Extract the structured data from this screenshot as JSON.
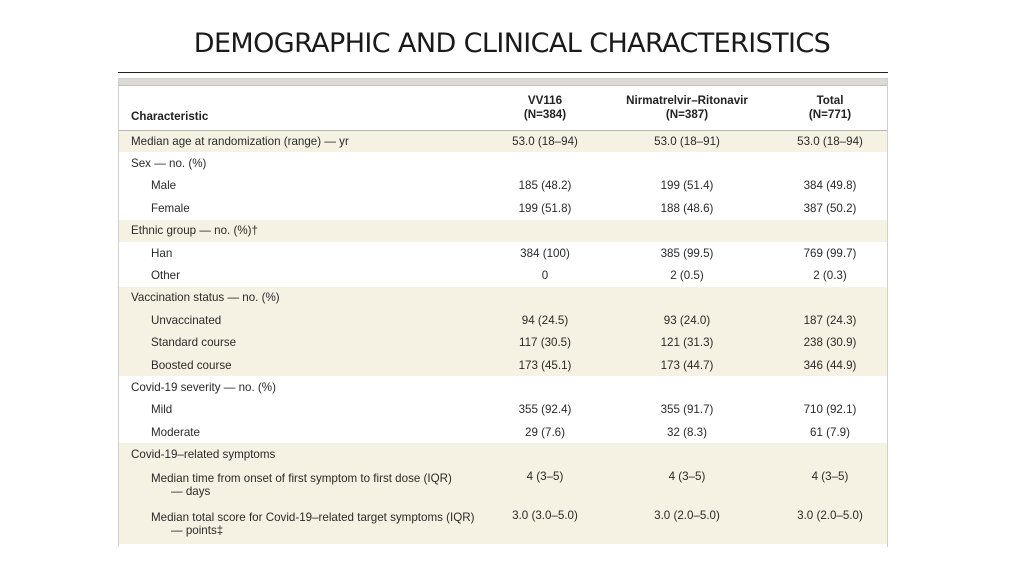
{
  "slide": {
    "title": "DEMOGRAPHIC AND CLINICAL CHARACTERISTICS"
  },
  "table": {
    "headers": {
      "characteristic": "Characteristic",
      "col1_name": "VV116",
      "col1_n": "(N=384)",
      "col2_name": "Nirmatrelvir–Ritonavir",
      "col2_n": "(N=387)",
      "col3_name": "Total",
      "col3_n": "(N=771)"
    },
    "rows": [
      {
        "label": "Median age at randomization (range) — yr",
        "vv116": "53.0 (18–94)",
        "nr": "53.0 (18–91)",
        "total": "53.0 (18–94)"
      },
      {
        "label": "Sex — no. (%)",
        "vv116": "",
        "nr": "",
        "total": ""
      },
      {
        "label": "Male",
        "vv116": "185 (48.2)",
        "nr": "199 (51.4)",
        "total": "384 (49.8)"
      },
      {
        "label": "Female",
        "vv116": "199 (51.8)",
        "nr": "188 (48.6)",
        "total": "387 (50.2)"
      },
      {
        "label": "Ethnic group — no. (%)†",
        "vv116": "",
        "nr": "",
        "total": ""
      },
      {
        "label": "Han",
        "vv116": "384 (100)",
        "nr": "385 (99.5)",
        "total": "769 (99.7)"
      },
      {
        "label": "Other",
        "vv116": "0",
        "nr": "2 (0.5)",
        "total": "2 (0.3)"
      },
      {
        "label": "Vaccination status — no. (%)",
        "vv116": "",
        "nr": "",
        "total": ""
      },
      {
        "label": "Unvaccinated",
        "vv116": "94 (24.5)",
        "nr": "93 (24.0)",
        "total": "187 (24.3)"
      },
      {
        "label": "Standard course",
        "vv116": "117 (30.5)",
        "nr": "121 (31.3)",
        "total": "238 (30.9)"
      },
      {
        "label": "Boosted course",
        "vv116": "173 (45.1)",
        "nr": "173 (44.7)",
        "total": "346 (44.9)"
      },
      {
        "label": "Covid-19 severity — no. (%)",
        "vv116": "",
        "nr": "",
        "total": ""
      },
      {
        "label": "Mild",
        "vv116": "355 (92.4)",
        "nr": "355 (91.7)",
        "total": "710 (92.1)"
      },
      {
        "label": "Moderate",
        "vv116": "29 (7.6)",
        "nr": "32 (8.3)",
        "total": "61 (7.9)"
      },
      {
        "label": "Covid-19–related symptoms",
        "vv116": "",
        "nr": "",
        "total": ""
      },
      {
        "label": "Median time from onset of first symptom to first dose (IQR)",
        "label_cont": "— days",
        "vv116": "4 (3–5)",
        "nr": "4 (3–5)",
        "total": "4 (3–5)"
      },
      {
        "label": "Median total score for Covid-19–related target symptoms (IQR)",
        "label_cont": "— points‡",
        "vv116": "3.0 (3.0–5.0)",
        "nr": "3.0 (2.0–5.0)",
        "total": "3.0 (2.0–5.0)"
      }
    ]
  }
}
